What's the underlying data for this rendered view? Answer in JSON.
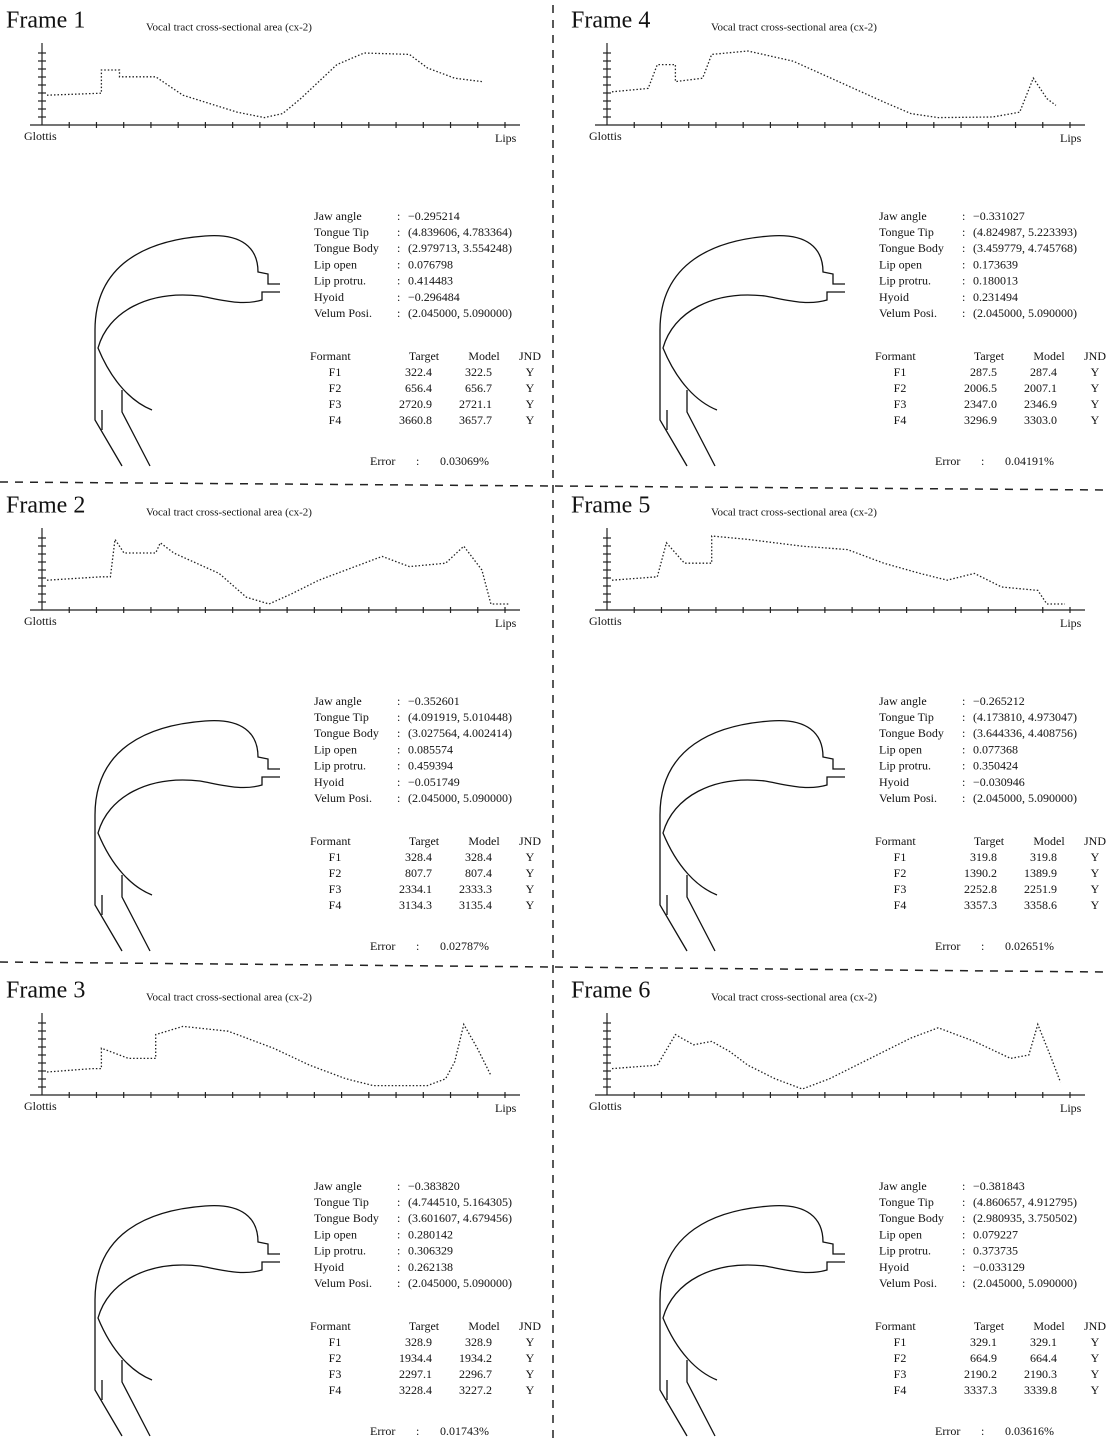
{
  "frames": [
    {
      "title": "Frame 1",
      "chart_title": "Vocal tract cross-sectional area (cx-2)",
      "x_start": "Glottis",
      "x_end": "Lips",
      "separator": ":",
      "params": [
        [
          "Jaw angle",
          "−0.295214"
        ],
        [
          "Tongue Tip",
          "(4.839606, 4.783364)"
        ],
        [
          "Tongue Body",
          "(2.979713, 3.554248)"
        ],
        [
          "Lip open",
          "0.076798"
        ],
        [
          "Lip protru.",
          "0.414483"
        ],
        [
          "Hyoid",
          "−0.296484"
        ],
        [
          "Velum Posi.",
          "(2.045000, 5.090000)"
        ]
      ],
      "formant_header": [
        "Formant",
        "Target",
        "Model",
        "JND"
      ],
      "formants": [
        [
          "F1",
          "322.4",
          "322.5",
          "Y"
        ],
        [
          "F2",
          "656.4",
          "656.7",
          "Y"
        ],
        [
          "F3",
          "2720.9",
          "2721.1",
          "Y"
        ],
        [
          "F4",
          "3660.8",
          "3657.7",
          "Y"
        ]
      ],
      "error_label": "Error",
      "error_value": "0.03069%"
    },
    {
      "title": "Frame 2",
      "chart_title": "Vocal tract cross-sectional area (cx-2)",
      "x_start": "Glottis",
      "x_end": "Lips",
      "separator": ":",
      "params": [
        [
          "Jaw angle",
          "−0.352601"
        ],
        [
          "Tongue Tip",
          "(4.091919, 5.010448)"
        ],
        [
          "Tongue Body",
          "(3.027564, 4.002414)"
        ],
        [
          "Lip open",
          "0.085574"
        ],
        [
          "Lip protru.",
          "0.459394"
        ],
        [
          "Hyoid",
          "−0.051749"
        ],
        [
          "Velum Posi.",
          "(2.045000, 5.090000)"
        ]
      ],
      "formant_header": [
        "Formant",
        "Target",
        "Model",
        "JND"
      ],
      "formants": [
        [
          "F1",
          "328.4",
          "328.4",
          "Y"
        ],
        [
          "F2",
          "807.7",
          "807.4",
          "Y"
        ],
        [
          "F3",
          "2334.1",
          "2333.3",
          "Y"
        ],
        [
          "F4",
          "3134.3",
          "3135.4",
          "Y"
        ]
      ],
      "error_label": "Error",
      "error_value": "0.02787%"
    },
    {
      "title": "Frame 3",
      "chart_title": "Vocal tract cross-sectional area (cx-2)",
      "x_start": "Glottis",
      "x_end": "Lips",
      "separator": ":",
      "params": [
        [
          "Jaw angle",
          "−0.383820"
        ],
        [
          "Tongue Tip",
          "(4.744510, 5.164305)"
        ],
        [
          "Tongue Body",
          "(3.601607, 4.679456)"
        ],
        [
          "Lip open",
          "0.280142"
        ],
        [
          "Lip protru.",
          "0.306329"
        ],
        [
          "Hyoid",
          "0.262138"
        ],
        [
          "Velum Posi.",
          "(2.045000, 5.090000)"
        ]
      ],
      "formant_header": [
        "Formant",
        "Target",
        "Model",
        "JND"
      ],
      "formants": [
        [
          "F1",
          "328.9",
          "328.9",
          "Y"
        ],
        [
          "F2",
          "1934.4",
          "1934.2",
          "Y"
        ],
        [
          "F3",
          "2297.1",
          "2296.7",
          "Y"
        ],
        [
          "F4",
          "3228.4",
          "3227.2",
          "Y"
        ]
      ],
      "error_label": "Error",
      "error_value": "0.01743%"
    },
    {
      "title": "Frame 4",
      "chart_title": "Vocal tract cross-sectional area (cx-2)",
      "x_start": "Glottis",
      "x_end": "Lips",
      "separator": ":",
      "params": [
        [
          "Jaw angle",
          "−0.331027"
        ],
        [
          "Tongue Tip",
          "(4.824987, 5.223393)"
        ],
        [
          "Tongue Body",
          "(3.459779, 4.745768)"
        ],
        [
          "Lip open",
          "0.173639"
        ],
        [
          "Lip protru.",
          "0.180013"
        ],
        [
          "Hyoid",
          "0.231494"
        ],
        [
          "Velum Posi.",
          "(2.045000, 5.090000)"
        ]
      ],
      "formant_header": [
        "Formant",
        "Target",
        "Model",
        "JND"
      ],
      "formants": [
        [
          "F1",
          "287.5",
          "287.4",
          "Y"
        ],
        [
          "F2",
          "2006.5",
          "2007.1",
          "Y"
        ],
        [
          "F3",
          "2347.0",
          "2346.9",
          "Y"
        ],
        [
          "F4",
          "3296.9",
          "3303.0",
          "Y"
        ]
      ],
      "error_label": "Error",
      "error_value": "0.04191%"
    },
    {
      "title": "Frame 5",
      "chart_title": "Vocal tract cross-sectional area (cx-2)",
      "x_start": "Glottis",
      "x_end": "Lips",
      "separator": ":",
      "params": [
        [
          "Jaw angle",
          "−0.265212"
        ],
        [
          "Tongue Tip",
          "(4.173810, 4.973047)"
        ],
        [
          "Tongue Body",
          "(3.644336, 4.408756)"
        ],
        [
          "Lip open",
          "0.077368"
        ],
        [
          "Lip protru.",
          "0.350424"
        ],
        [
          "Hyoid",
          "−0.030946"
        ],
        [
          "Velum Posi.",
          "(2.045000, 5.090000)"
        ]
      ],
      "formant_header": [
        "Formant",
        "Target",
        "Model",
        "JND"
      ],
      "formants": [
        [
          "F1",
          "319.8",
          "319.8",
          "Y"
        ],
        [
          "F2",
          "1390.2",
          "1389.9",
          "Y"
        ],
        [
          "F3",
          "2252.8",
          "2251.9",
          "Y"
        ],
        [
          "F4",
          "3357.3",
          "3358.6",
          "Y"
        ]
      ],
      "error_label": "Error",
      "error_value": "0.02651%"
    },
    {
      "title": "Frame 6",
      "chart_title": "Vocal tract cross-sectional area (cx-2)",
      "x_start": "Glottis",
      "x_end": "Lips",
      "separator": ":",
      "params": [
        [
          "Jaw angle",
          "−0.381843"
        ],
        [
          "Tongue Tip",
          "(4.860657, 4.912795)"
        ],
        [
          "Tongue Body",
          "(2.980935, 3.750502)"
        ],
        [
          "Lip open",
          "0.079227"
        ],
        [
          "Lip protru.",
          "0.373735"
        ],
        [
          "Hyoid",
          "−0.033129"
        ],
        [
          "Velum Posi.",
          "(2.045000, 5.090000)"
        ]
      ],
      "formant_header": [
        "Formant",
        "Target",
        "Model",
        "JND"
      ],
      "formants": [
        [
          "F1",
          "329.1",
          "329.1",
          "Y"
        ],
        [
          "F2",
          "664.9",
          "664.4",
          "Y"
        ],
        [
          "F3",
          "2190.2",
          "2190.3",
          "Y"
        ],
        [
          "F4",
          "3337.3",
          "3339.8",
          "Y"
        ]
      ],
      "error_label": "Error",
      "error_value": "0.03616%"
    }
  ]
}
